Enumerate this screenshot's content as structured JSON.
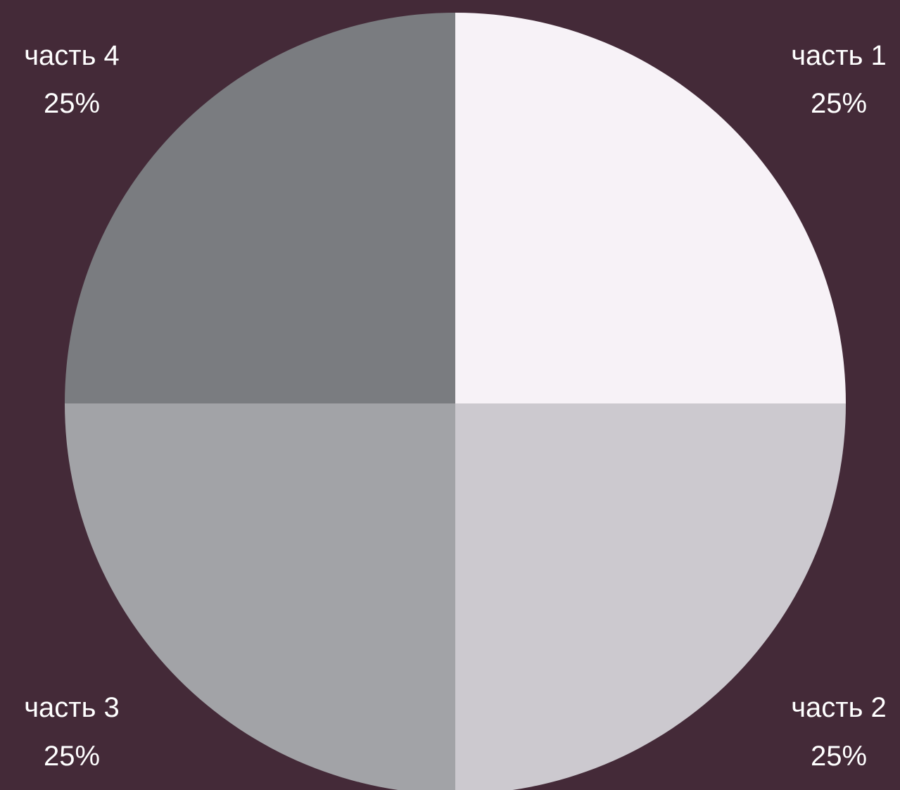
{
  "colors": {
    "background": "#442a38"
  },
  "chart_data": {
    "type": "pie",
    "title": "",
    "start_angle_deg": 90,
    "direction": "clockwise",
    "slices": [
      {
        "label": "часть 1",
        "value": 25,
        "percent_label": "25%",
        "color": "#f7f2f7"
      },
      {
        "label": "часть 2",
        "value": 25,
        "percent_label": "25%",
        "color": "#ccc9cf"
      },
      {
        "label": "часть 3",
        "value": 25,
        "percent_label": "25%",
        "color": "#a2a3a7"
      },
      {
        "label": "часть 4",
        "value": 25,
        "percent_label": "25%",
        "color": "#7a7c80"
      }
    ]
  }
}
